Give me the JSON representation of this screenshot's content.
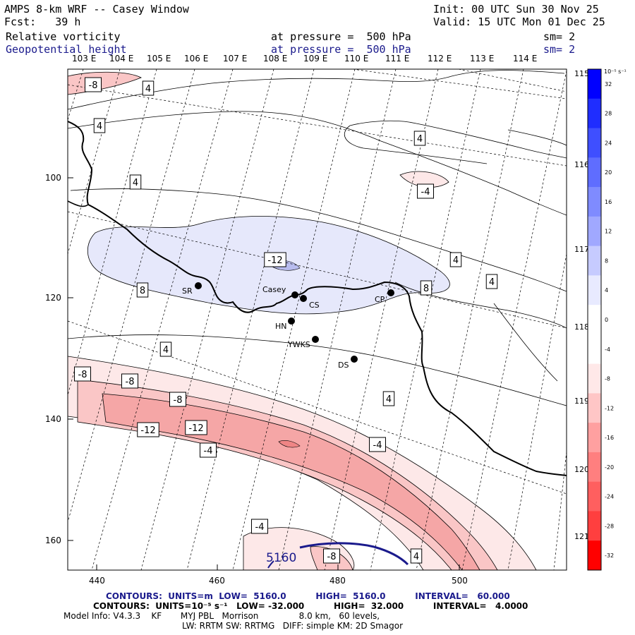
{
  "header": {
    "title": "AMPS 8-km WRF -- Casey Window",
    "init": "Init: 00 UTC Sun 30 Nov 25",
    "fcst": "Fcst:   39 h",
    "valid": "Valid: 15 UTC Mon 01 Dec 25",
    "field1": "Relative vorticity",
    "field1_level": "at pressure =  500 hPa",
    "field1_sm": "sm= 2",
    "field2": "Geopotential height",
    "field2_level": "at pressure =  500 hPa",
    "field2_sm": "sm= 2"
  },
  "lon_labels_top": [
    "103 E",
    "104 E",
    "105 E",
    "106 E",
    "107 E",
    "108 E",
    "109 E",
    "110 E",
    "111 E",
    "112 E",
    "113 E",
    "114 E"
  ],
  "lon_labels_right": [
    "115 E",
    "116 E",
    "117 E",
    "118 E",
    "119 E",
    "120 E",
    "121 E"
  ],
  "x_ticks": [
    "440",
    "460",
    "480",
    "500"
  ],
  "y_ticks": [
    "100",
    "120",
    "140",
    "160"
  ],
  "contour_labels": [
    {
      "text": "-8"
    },
    {
      "text": "4"
    },
    {
      "text": "4"
    },
    {
      "text": "4"
    },
    {
      "text": "4"
    },
    {
      "text": "-4"
    },
    {
      "text": "-12"
    },
    {
      "text": "8"
    },
    {
      "text": "8"
    },
    {
      "text": "4"
    },
    {
      "text": "4"
    },
    {
      "text": "4"
    },
    {
      "text": "-8"
    },
    {
      "text": "-8"
    },
    {
      "text": "-12"
    },
    {
      "text": "-8"
    },
    {
      "text": "-12"
    },
    {
      "text": "-4"
    },
    {
      "text": "4"
    },
    {
      "text": "-4"
    },
    {
      "text": "-4"
    },
    {
      "text": "-8"
    },
    {
      "text": "4"
    }
  ],
  "height_label": "5160",
  "stations": [
    {
      "name": "SR"
    },
    {
      "name": "Casey"
    },
    {
      "name": "CS"
    },
    {
      "name": "CP"
    },
    {
      "name": "HN"
    },
    {
      "name": "YWKS"
    },
    {
      "name": "DS"
    }
  ],
  "colorbar": {
    "unit": "10⁻⁵ s⁻¹",
    "ticks": [
      "32",
      "28",
      "24",
      "20",
      "16",
      "12",
      "8",
      "4",
      "0",
      "-4",
      "-8",
      "-12",
      "-16",
      "-20",
      "-24",
      "-28",
      "-32"
    ],
    "colors_top_to_bottom": [
      "#0000ff",
      "#1f2dff",
      "#3f4fff",
      "#5f6dff",
      "#7f8bff",
      "#a0a8ff",
      "#c6cbff",
      "#e8eaff",
      "#ffffff",
      "#ffffff",
      "#ffe8e8",
      "#ffc6c6",
      "#ffa0a0",
      "#ff7f7f",
      "#ff5f5f",
      "#ff3f3f",
      "#ff0000"
    ]
  },
  "footer": {
    "line1": "CONTOURS:  UNITS=m  LOW=  5160.0          HIGH=  5160.0          INTERVAL=   60.000",
    "line2": "CONTOURS:  UNITS=10⁻⁵ s⁻¹   LOW= -32.000          HIGH=  32.000          INTERVAL=   4.0000",
    "line3": "Model Info: V4.3.3    KF       MYJ PBL   Morrison               8.0 km,   60 levels,",
    "line4": "LW: RRTM SW: RRTMG   DIFF: simple KM: 2D Smagor"
  },
  "colors": {
    "frame": "#000000",
    "height_contour": "#1a1a8c",
    "positive_fill": "#e6e8fb",
    "neg_fill_1": "#fde8e8",
    "neg_fill_2": "#fac6c6",
    "neg_fill_3": "#f5a6a6",
    "neg_fill_4": "#ef8585"
  }
}
